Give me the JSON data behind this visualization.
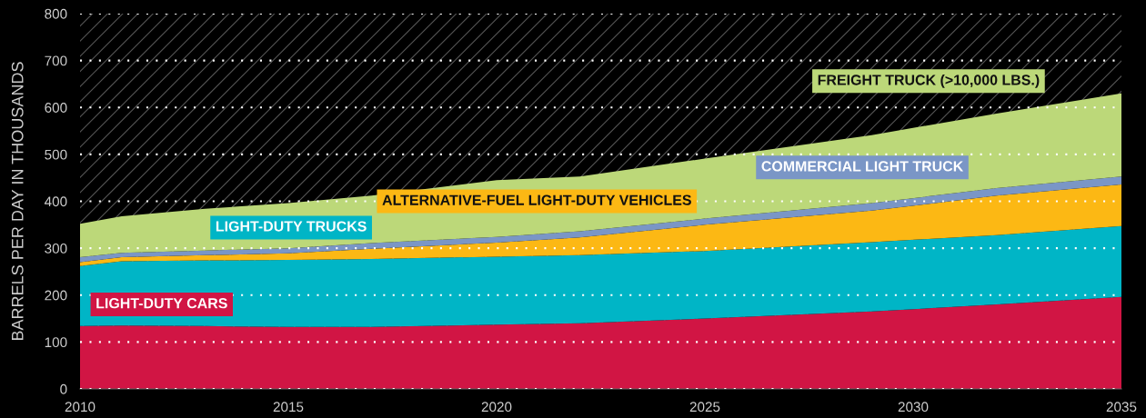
{
  "chart_data": {
    "type": "area",
    "stacked": true,
    "ylabel": "BARRELS PER DAY IN THOUSANDS",
    "x": [
      2010,
      2011,
      2013,
      2015,
      2017,
      2020,
      2022,
      2025,
      2029,
      2032,
      2035
    ],
    "series": [
      {
        "name": "LIGHT-DUTY CARS",
        "color": "#d11544",
        "values": [
          134,
          135,
          134,
          132,
          132,
          137,
          140,
          150,
          165,
          180,
          196
        ]
      },
      {
        "name": "LIGHT-DUTY TRUCKS",
        "color": "#00b5c6",
        "values": [
          128,
          137,
          140,
          143,
          145,
          145,
          145,
          144,
          148,
          148,
          151
        ]
      },
      {
        "name": "ALTERNATIVE-FUEL LIGHT-DUTY VEHICLES",
        "color": "#fcb814",
        "values": [
          8,
          9,
          11,
          14,
          22,
          30,
          38,
          56,
          67,
          84,
          89
        ]
      },
      {
        "name": "COMMERCIAL LIGHT TRUCK",
        "color": "#7a96c6",
        "values": [
          11,
          9,
          10,
          11,
          12,
          12,
          13,
          13,
          16,
          16,
          17
        ]
      },
      {
        "name": "FREIGHT TRUCK (>10,000 LBS.)",
        "color": "#bcd879",
        "values": [
          71,
          78,
          89,
          96,
          101,
          121,
          117,
          128,
          145,
          159,
          177
        ]
      }
    ],
    "xlim": [
      2010,
      2035
    ],
    "xticks": [
      2010,
      2015,
      2020,
      2025,
      2030,
      2035
    ],
    "ylim": [
      0,
      800
    ],
    "yticks": [
      0,
      100,
      200,
      300,
      400,
      500,
      600,
      700,
      800
    ],
    "grid": "y"
  }
}
